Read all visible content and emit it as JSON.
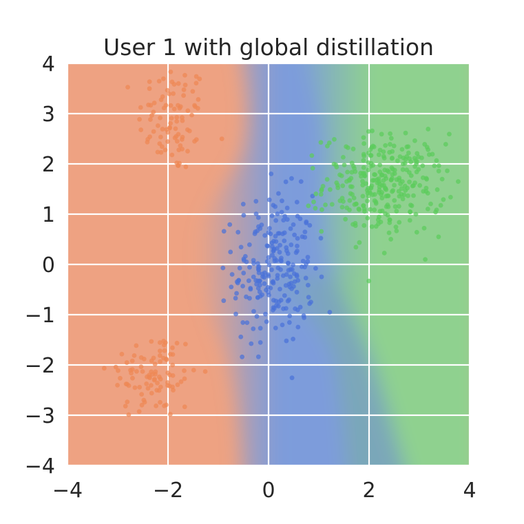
{
  "chart_data": {
    "type": "scatter",
    "title": "User 1 with global distillation",
    "xlabel": "",
    "ylabel": "",
    "xlim": [
      -4,
      4
    ],
    "ylim": [
      -4,
      4
    ],
    "xticks": [
      -4,
      -2,
      0,
      2,
      4
    ],
    "yticks": [
      -4,
      -3,
      -2,
      -1,
      0,
      1,
      2,
      3,
      4
    ],
    "xtick_labels": [
      "−4",
      "−2",
      "0",
      "2",
      "4"
    ],
    "ytick_labels": [
      "−4",
      "−3",
      "−2",
      "−1",
      "0",
      "1",
      "2",
      "3",
      "4"
    ],
    "grid": true,
    "legend": "none",
    "background": "decision regions of a 3-class classifier",
    "region_colors": {
      "orange": "#eea282",
      "blue": "#7d9cdb",
      "green": "#8fd18f",
      "blend": "#7aa9b4"
    },
    "series": [
      {
        "color": "#ee8855",
        "clusters": [
          {
            "center": [
              -1.9,
              2.9
            ],
            "spread": [
              0.35,
              0.55
            ],
            "count": 90
          },
          {
            "center": [
              -2.3,
              -2.2
            ],
            "spread": [
              0.45,
              0.45
            ],
            "count": 95
          }
        ]
      },
      {
        "color": "#4a72d8",
        "clusters": [
          {
            "center": [
              0.1,
              -0.1
            ],
            "spread": [
              0.4,
              0.75
            ],
            "count": 230
          }
        ]
      },
      {
        "color": "#5ccc5c",
        "clusters": [
          {
            "center": [
              2.3,
              1.6
            ],
            "spread": [
              0.6,
              0.5
            ],
            "count": 300
          }
        ]
      }
    ]
  }
}
